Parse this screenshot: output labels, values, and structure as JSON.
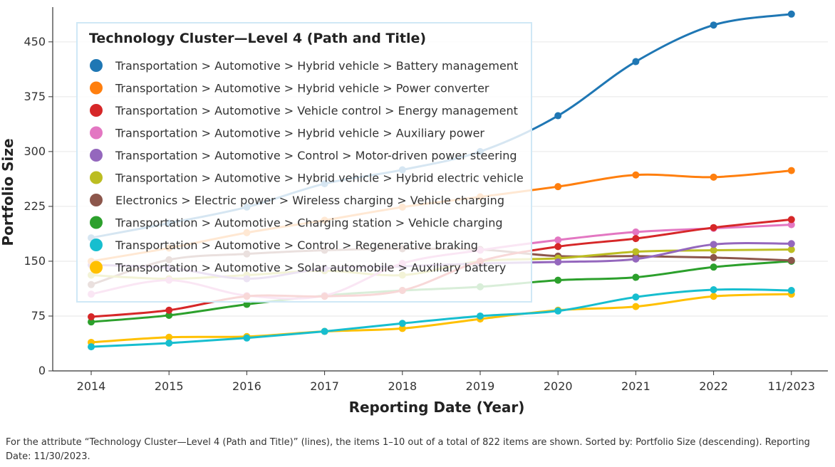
{
  "chart_data": {
    "type": "line",
    "x": [
      "2014",
      "2015",
      "2016",
      "2017",
      "2018",
      "2019",
      "2020",
      "2021",
      "2022",
      "11/2023"
    ],
    "xlabel": "Reporting Date (Year)",
    "ylabel": "Portfolio Size",
    "ylim": [
      0,
      480
    ],
    "yticks": [
      0,
      75,
      150,
      225,
      300,
      375,
      450
    ],
    "grid": "horizontal",
    "legend_title": "Technology Cluster—Level 4 (Path and Title)",
    "legend_position": "top-left",
    "series": [
      {
        "name": "Transportation > Automotive > Hybrid vehicle > Battery management",
        "color": "#1f77b4",
        "values": [
          182,
          202,
          224,
          256,
          275,
          300,
          349,
          423,
          473,
          488
        ]
      },
      {
        "name": "Transportation > Automotive > Hybrid vehicle > Power converter",
        "color": "#ff7f0e",
        "values": [
          150,
          168,
          189,
          206,
          224,
          238,
          252,
          268,
          265,
          274
        ]
      },
      {
        "name": "Transportation > Automotive > Vehicle control > Energy management",
        "color": "#d62728",
        "values": [
          74,
          83,
          102,
          102,
          110,
          150,
          170,
          181,
          196,
          207
        ]
      },
      {
        "name": "Transportation > Automotive > Hybrid vehicle > Auxiliary power",
        "color": "#e377c2",
        "values": [
          105,
          124,
          103,
          103,
          147,
          165,
          179,
          190,
          195,
          200
        ]
      },
      {
        "name": "Transportation > Automotive > Control > Motor-driven power steering",
        "color": "#9467bd",
        "values": [
          145,
          141,
          126,
          140,
          143,
          147,
          149,
          153,
          173,
          174
        ]
      },
      {
        "name": "Transportation > Automotive > Hybrid vehicle > Hybrid electric vehicle",
        "color": "#bcbd22",
        "values": [
          131,
          126,
          131,
          137,
          131,
          150,
          154,
          163,
          165,
          166
        ]
      },
      {
        "name": "Electronics > Electric power > Wireless charging > Vehicle charging",
        "color": "#8c564b",
        "values": [
          118,
          152,
          160,
          165,
          167,
          166,
          157,
          157,
          155,
          151
        ]
      },
      {
        "name": "Transportation > Automotive > Charging station > Vehicle charging",
        "color": "#2ca02c",
        "values": [
          67,
          76,
          91,
          103,
          110,
          115,
          124,
          128,
          142,
          150
        ]
      },
      {
        "name": "Transportation > Automotive > Control > Regenerative braking",
        "color": "#17becf",
        "values": [
          33,
          38,
          45,
          54,
          65,
          75,
          82,
          101,
          111,
          110
        ]
      },
      {
        "name": "Transportation > Automotive > Solar automobile > Auxiliary battery",
        "color": "#ffc000",
        "values": [
          39,
          46,
          47,
          54,
          58,
          71,
          83,
          88,
          102,
          105
        ]
      }
    ]
  },
  "footnote": "For the attribute “Technology Cluster—Level 4 (Path and Title)” (lines), the items 1–10 out of a total of 822 items are shown. Sorted by: Portfolio Size (descending). Reporting Date: 11/30/2023."
}
